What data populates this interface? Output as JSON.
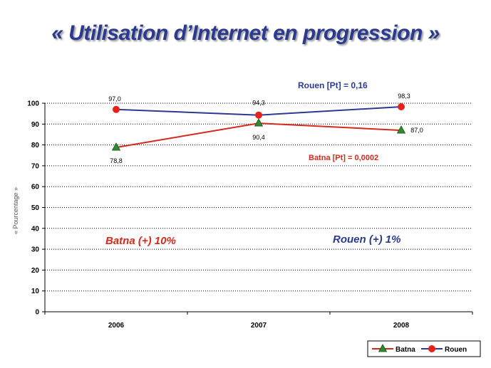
{
  "chart_data": {
    "type": "line",
    "title": "« Utilisation d’Internet en progression »",
    "ylabel": "« Pourcentage »",
    "xlabel": "",
    "categories": [
      "2006",
      "2007",
      "2008"
    ],
    "ylim": [
      0,
      100
    ],
    "yticks": [
      0,
      10,
      20,
      30,
      40,
      50,
      60,
      70,
      80,
      90,
      100
    ],
    "grid": "horizontal dotted",
    "legend_position": "bottom-right",
    "series": [
      {
        "name": "Batna",
        "values": [
          78.8,
          90.4,
          87.0
        ],
        "labels": [
          "78,8",
          "90,4",
          "87,0"
        ],
        "color": "#d42a1e",
        "marker": "triangle",
        "marker_color": "#2e8b2e"
      },
      {
        "name": "Rouen",
        "values": [
          97.0,
          94.3,
          98.3
        ],
        "labels": [
          "97,0",
          "94,3",
          "98,3"
        ],
        "color": "#2b3a8f",
        "marker": "circle",
        "marker_color": "#e8201a"
      }
    ],
    "annotations": {
      "rouen_pt": "Rouen  [Pt] = 0,16",
      "batna_pt": "Batna  [Pt] = 0,0002",
      "batna_growth": "Batna  (+) 10%",
      "rouen_growth": "Rouen  (+)  1%"
    }
  }
}
